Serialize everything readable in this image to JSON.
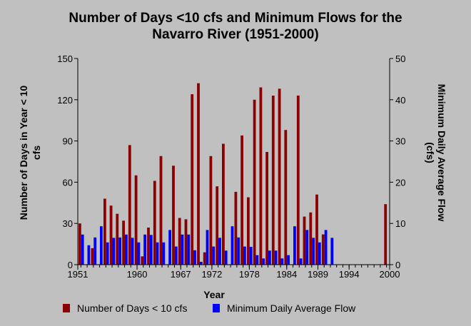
{
  "chart_data": {
    "type": "bar",
    "title_line1": "Number of Days <10 cfs and Minimum Flows for the",
    "title_line2": "Navarro River (1951-2000)",
    "xlabel": "Year",
    "ylabel_left": "Number of Days in Year < 10 cfs",
    "ylabel_right": "Minimum Daily Average Flow (cfs)",
    "ylim_left": [
      0,
      150
    ],
    "ylim_right": [
      0,
      50
    ],
    "yticks_left": [
      "0",
      "30",
      "60",
      "90",
      "120",
      "150"
    ],
    "yticks_right": [
      "0",
      "10",
      "20",
      "30",
      "40",
      "50"
    ],
    "x": [
      1951,
      1952,
      1953,
      1954,
      1955,
      1956,
      1957,
      1958,
      1959,
      1960,
      1961,
      1962,
      1963,
      1964,
      1965,
      1966,
      1967,
      1968,
      1969,
      1970,
      1971,
      1972,
      1973,
      1974,
      1975,
      1976,
      1977,
      1978,
      1979,
      1980,
      1981,
      1982,
      1983,
      1984,
      1985,
      1986,
      1987,
      1988,
      1989,
      1990,
      1991,
      1992,
      1993,
      1994,
      1995,
      1996,
      1997,
      1998,
      1999,
      2000
    ],
    "xtick_labels": [
      "1951",
      "1960",
      "1967",
      "1972",
      "1978",
      "1984",
      "1989",
      "1994",
      "2000"
    ],
    "grid": false,
    "legend_position": "bottom",
    "series": [
      {
        "name": "Number of Days < 10 cfs",
        "color": "#8b0000",
        "axis": "left",
        "values": [
          30,
          0,
          12,
          0,
          48,
          43,
          37,
          32,
          87,
          65,
          6,
          27,
          61,
          79,
          0,
          72,
          34,
          33,
          124,
          132,
          9,
          79,
          57,
          88,
          0,
          53,
          94,
          49,
          120,
          129,
          82,
          123,
          128,
          98,
          0,
          123,
          35,
          38,
          51,
          22,
          0,
          0,
          0,
          0,
          0,
          0,
          0,
          0,
          0,
          44
        ]
      },
      {
        "name": "Minimum Daily Average Flow",
        "color": "#0000ff",
        "axis": "right",
        "values": [
          7.3,
          4.7,
          6.6,
          9.3,
          5.4,
          6.5,
          6.6,
          7.3,
          6.5,
          5.4,
          7.3,
          7.2,
          5.4,
          5.4,
          8.4,
          4.4,
          7.3,
          7.3,
          3.5,
          0.7,
          8.4,
          4.4,
          6.5,
          3.4,
          9.3,
          6.6,
          4.4,
          4.3,
          2.3,
          1.5,
          3.4,
          3.4,
          1.5,
          2.3,
          9.3,
          1.5,
          8.4,
          6.5,
          5.4,
          8.4,
          6.5,
          0,
          0,
          0,
          0,
          0,
          0,
          0,
          0,
          0
        ]
      }
    ]
  }
}
